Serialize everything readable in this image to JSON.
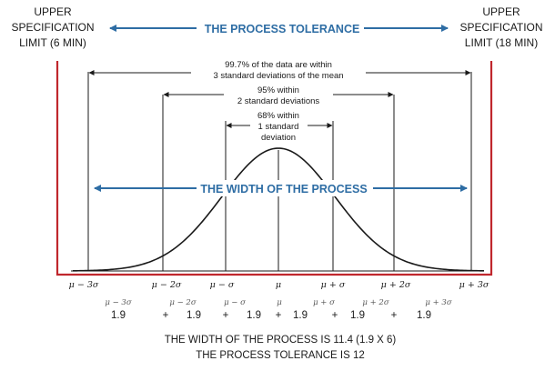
{
  "spec_left": {
    "line1": "UPPER",
    "line2": "SPECIFICATION",
    "line3": "LIMIT (6 MIN)"
  },
  "spec_right": {
    "line1": "UPPER",
    "line2": "SPECIFICATION",
    "line3": "LIMIT (18 MIN)"
  },
  "process_tolerance_label": "THE PROCESS TOLERANCE",
  "width_of_process_label": "THE WIDTH OF THE PROCESS",
  "annotations": {
    "pct_997": {
      "line1": "99.7% of the data are within",
      "line2": "3 standard deviations of the mean"
    },
    "pct_95": {
      "line1": "95% within",
      "line2": "2 standard deviations"
    },
    "pct_68": {
      "line1": "68% within",
      "line2": "1 standard",
      "line3": "deviation"
    }
  },
  "axis_labels": [
    "μ − 3σ",
    "μ − 2σ",
    "μ − σ",
    "μ",
    "μ + σ",
    "μ + 2σ",
    "μ + 3σ"
  ],
  "row2_labels": [
    "μ − 3σ",
    "μ − 2σ",
    "μ − σ",
    "μ",
    "μ + σ",
    "μ + 2σ",
    "μ + 3σ"
  ],
  "sum_row": {
    "values": [
      "1.9",
      "1.9",
      "1.9",
      "1.9",
      "1.9",
      "1.9"
    ],
    "plus": "+"
  },
  "footer": {
    "line1": "THE WIDTH OF THE PROCESS IS 11.4 (1.9 X 6)",
    "line2": "THE PROCESS TOLERANCE IS 12"
  },
  "colors": {
    "blue": "#2e6da4",
    "red": "#c0272d",
    "text": "#1a1a1a"
  }
}
